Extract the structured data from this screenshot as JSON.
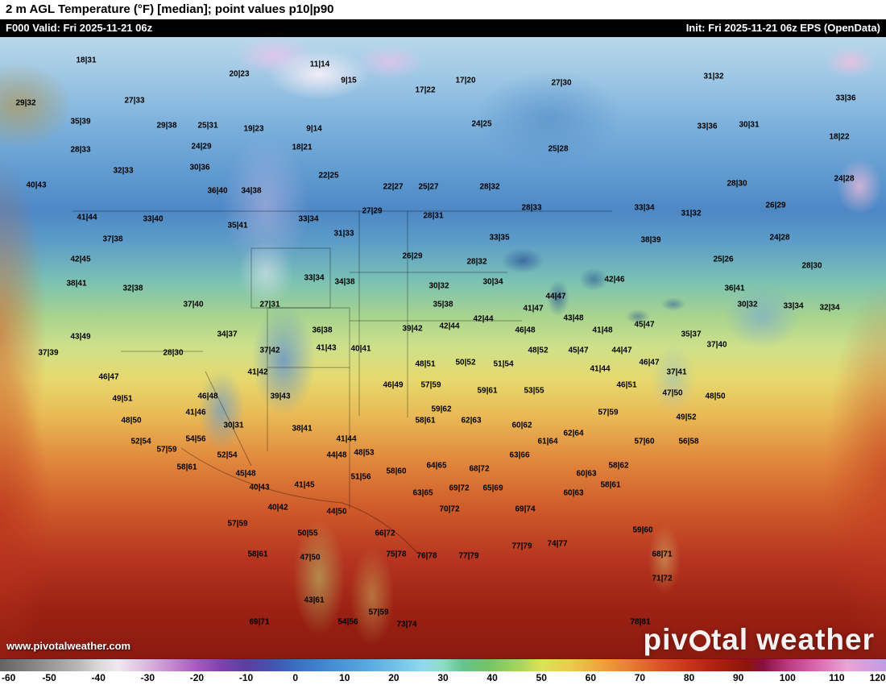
{
  "header": {
    "title": "2 m AGL Temperature (°F) [median]; point values p10|p90",
    "valid": "F000 Valid: Fri 2025-11-21 06z",
    "init": "Init: Fri 2025-11-21 06z EPS (OpenData)"
  },
  "map": {
    "watermark": "www.pivotalweather.com",
    "logo": {
      "prefix": "piv",
      "suffix": "tal",
      "word2": "weather"
    },
    "points": [
      [
        "18|31",
        107,
        75
      ],
      [
        "20|23",
        297,
        92
      ],
      [
        "11|14",
        397,
        80
      ],
      [
        "9|15",
        433,
        100
      ],
      [
        "17|22",
        528,
        112
      ],
      [
        "17|20",
        578,
        100
      ],
      [
        "27|30",
        697,
        103
      ],
      [
        "31|32",
        886,
        95
      ],
      [
        "33|36",
        1050,
        122
      ],
      [
        "29|32",
        32,
        128
      ],
      [
        "27|33",
        167,
        125
      ],
      [
        "35|39",
        100,
        151
      ],
      [
        "29|38",
        207,
        156
      ],
      [
        "25|31",
        258,
        156
      ],
      [
        "19|23",
        315,
        160
      ],
      [
        "9|14",
        390,
        160
      ],
      [
        "24|25",
        598,
        154
      ],
      [
        "30|31",
        930,
        155
      ],
      [
        "33|36",
        878,
        157
      ],
      [
        "18|22",
        1042,
        170
      ],
      [
        "24|29",
        250,
        182
      ],
      [
        "18|21",
        375,
        183
      ],
      [
        "28|33",
        100,
        186
      ],
      [
        "25|28",
        693,
        185
      ],
      [
        "32|33",
        153,
        212
      ],
      [
        "30|36",
        248,
        208
      ],
      [
        "22|25",
        408,
        218
      ],
      [
        "28|30",
        915,
        228
      ],
      [
        "24|28",
        1048,
        222
      ],
      [
        "36|40",
        270,
        237
      ],
      [
        "34|38",
        312,
        237
      ],
      [
        "22|27",
        488,
        232
      ],
      [
        "25|27",
        532,
        232
      ],
      [
        "28|32",
        608,
        232
      ],
      [
        "40|43",
        45,
        230
      ],
      [
        "26|29",
        963,
        255
      ],
      [
        "33|40",
        190,
        272
      ],
      [
        "27|29",
        462,
        262
      ],
      [
        "28|31",
        538,
        268
      ],
      [
        "28|33",
        660,
        258
      ],
      [
        "33|34",
        800,
        258
      ],
      [
        "31|32",
        858,
        265
      ],
      [
        "41|44",
        108,
        270
      ],
      [
        "37|38",
        140,
        297
      ],
      [
        "35|41",
        295,
        280
      ],
      [
        "33|34",
        383,
        272
      ],
      [
        "31|33",
        427,
        290
      ],
      [
        "26|29",
        512,
        318
      ],
      [
        "33|35",
        620,
        295
      ],
      [
        "38|39",
        808,
        298
      ],
      [
        "24|28",
        968,
        295
      ],
      [
        "25|26",
        898,
        322
      ],
      [
        "28|30",
        1008,
        330
      ],
      [
        "42|45",
        100,
        322
      ],
      [
        "28|32",
        592,
        325
      ],
      [
        "30|32",
        545,
        355
      ],
      [
        "32|38",
        165,
        358
      ],
      [
        "38|41",
        95,
        352
      ],
      [
        "33|34",
        390,
        345
      ],
      [
        "34|38",
        428,
        350
      ],
      [
        "30|34",
        612,
        350
      ],
      [
        "35|38",
        550,
        378
      ],
      [
        "42|46",
        763,
        347
      ],
      [
        "44|47",
        690,
        368
      ],
      [
        "41|47",
        662,
        383
      ],
      [
        "43|48",
        712,
        395
      ],
      [
        "41|48",
        748,
        410
      ],
      [
        "42|44",
        558,
        405
      ],
      [
        "39|42",
        512,
        408
      ],
      [
        "42|44",
        600,
        396
      ],
      [
        "46|48",
        652,
        410
      ],
      [
        "45|47",
        800,
        403
      ],
      [
        "35|37",
        858,
        415
      ],
      [
        "37|40",
        890,
        428
      ],
      [
        "36|41",
        912,
        358
      ],
      [
        "30|32",
        928,
        378
      ],
      [
        "33|34",
        985,
        380
      ],
      [
        "32|34",
        1030,
        382
      ],
      [
        "37|40",
        240,
        378
      ],
      [
        "27|31",
        335,
        378
      ],
      [
        "36|38",
        400,
        410
      ],
      [
        "34|37",
        282,
        415
      ],
      [
        "43|49",
        100,
        418
      ],
      [
        "37|39",
        60,
        438
      ],
      [
        "28|30",
        215,
        438
      ],
      [
        "37|42",
        335,
        435
      ],
      [
        "41|43",
        405,
        432
      ],
      [
        "40|41",
        448,
        433
      ],
      [
        "48|51",
        528,
        452
      ],
      [
        "50|52",
        578,
        450
      ],
      [
        "51|54",
        625,
        452
      ],
      [
        "48|52",
        668,
        435
      ],
      [
        "45|47",
        718,
        435
      ],
      [
        "44|47",
        772,
        435
      ],
      [
        "46|47",
        806,
        450
      ],
      [
        "37|41",
        840,
        462
      ],
      [
        "47|50",
        835,
        488
      ],
      [
        "48|50",
        888,
        492
      ],
      [
        "49|52",
        852,
        518
      ],
      [
        "56|58",
        855,
        548
      ],
      [
        "57|60",
        800,
        548
      ],
      [
        "57|59",
        755,
        512
      ],
      [
        "46|49",
        488,
        478
      ],
      [
        "57|59",
        535,
        478
      ],
      [
        "59|61",
        605,
        485
      ],
      [
        "53|55",
        663,
        485
      ],
      [
        "59|62",
        548,
        508
      ],
      [
        "58|61",
        528,
        522
      ],
      [
        "62|63",
        585,
        522
      ],
      [
        "60|62",
        648,
        528
      ],
      [
        "61|64",
        680,
        548
      ],
      [
        "62|64",
        712,
        538
      ],
      [
        "63|66",
        645,
        565
      ],
      [
        "58|62",
        768,
        578
      ],
      [
        "58|61",
        758,
        602
      ],
      [
        "60|63",
        728,
        588
      ],
      [
        "41|44",
        745,
        458
      ],
      [
        "46|51",
        778,
        478
      ],
      [
        "46|48",
        258,
        492
      ],
      [
        "41|46",
        243,
        512
      ],
      [
        "46|47",
        135,
        468
      ],
      [
        "49|51",
        152,
        495
      ],
      [
        "48|50",
        163,
        522
      ],
      [
        "52|54",
        175,
        548
      ],
      [
        "57|59",
        207,
        558
      ],
      [
        "54|56",
        243,
        545
      ],
      [
        "58|61",
        232,
        580
      ],
      [
        "52|54",
        282,
        565
      ],
      [
        "30|31",
        290,
        528
      ],
      [
        "38|41",
        375,
        532
      ],
      [
        "41|42",
        320,
        462
      ],
      [
        "39|43",
        348,
        492
      ],
      [
        "41|44",
        430,
        545
      ],
      [
        "44|48",
        418,
        565
      ],
      [
        "48|53",
        452,
        562
      ],
      [
        "51|56",
        448,
        592
      ],
      [
        "41|45",
        378,
        602
      ],
      [
        "45|48",
        305,
        588
      ],
      [
        "40|43",
        322,
        605
      ],
      [
        "40|42",
        345,
        630
      ],
      [
        "44|50",
        418,
        635
      ],
      [
        "58|60",
        492,
        585
      ],
      [
        "64|65",
        542,
        578
      ],
      [
        "68|72",
        595,
        582
      ],
      [
        "63|65",
        525,
        612
      ],
      [
        "69|72",
        570,
        606
      ],
      [
        "65|69",
        612,
        606
      ],
      [
        "70|72",
        558,
        632
      ],
      [
        "69|74",
        652,
        632
      ],
      [
        "66|72",
        478,
        662
      ],
      [
        "75|78",
        492,
        688
      ],
      [
        "76|78",
        530,
        690
      ],
      [
        "77|79",
        582,
        690
      ],
      [
        "77|79",
        648,
        678
      ],
      [
        "74|77",
        692,
        675
      ],
      [
        "59|60",
        798,
        658
      ],
      [
        "68|71",
        822,
        688
      ],
      [
        "71|72",
        822,
        718
      ],
      [
        "57|59",
        295,
        650
      ],
      [
        "50|55",
        382,
        662
      ],
      [
        "58|61",
        320,
        688
      ],
      [
        "47|50",
        385,
        692
      ],
      [
        "69|71",
        322,
        772
      ],
      [
        "43|61",
        390,
        745
      ],
      [
        "54|56",
        432,
        772
      ],
      [
        "57|59",
        470,
        760
      ],
      [
        "73|74",
        505,
        775
      ],
      [
        "78|81",
        795,
        772
      ],
      [
        "60|63",
        712,
        612
      ]
    ]
  },
  "colorbar": {
    "min": -60,
    "max": 120,
    "ticks": [
      -60,
      -50,
      -40,
      -30,
      -20,
      -10,
      0,
      10,
      20,
      30,
      40,
      50,
      60,
      70,
      80,
      90,
      100,
      110,
      120
    ],
    "stops": [
      [
        0.0,
        "#636363"
      ],
      [
        0.044,
        "#8c8c8c"
      ],
      [
        0.089,
        "#b8b8b8"
      ],
      [
        0.111,
        "#d9d9d9"
      ],
      [
        0.133,
        "#efe8f0"
      ],
      [
        0.167,
        "#dcb4de"
      ],
      [
        0.194,
        "#c687cf"
      ],
      [
        0.222,
        "#a958c0"
      ],
      [
        0.25,
        "#8040ad"
      ],
      [
        0.278,
        "#5b3fa0"
      ],
      [
        0.306,
        "#4452ae"
      ],
      [
        0.333,
        "#3a6ec0"
      ],
      [
        0.372,
        "#458bd2"
      ],
      [
        0.411,
        "#57a5de"
      ],
      [
        0.444,
        "#70bfe9"
      ],
      [
        0.478,
        "#92d8f0"
      ],
      [
        0.5,
        "#8edcc4"
      ],
      [
        0.522,
        "#66c48e"
      ],
      [
        0.55,
        "#74c364"
      ],
      [
        0.589,
        "#abd75c"
      ],
      [
        0.611,
        "#dce25a"
      ],
      [
        0.644,
        "#eec94e"
      ],
      [
        0.678,
        "#eda440"
      ],
      [
        0.711,
        "#e67e33"
      ],
      [
        0.744,
        "#da5526"
      ],
      [
        0.778,
        "#c63418"
      ],
      [
        0.811,
        "#a9200e"
      ],
      [
        0.844,
        "#8b150a"
      ],
      [
        0.861,
        "#861040"
      ],
      [
        0.889,
        "#b93a80"
      ],
      [
        0.922,
        "#d96ab2"
      ],
      [
        0.956,
        "#eda2d4"
      ],
      [
        1.0,
        "#c39ae6"
      ]
    ]
  }
}
